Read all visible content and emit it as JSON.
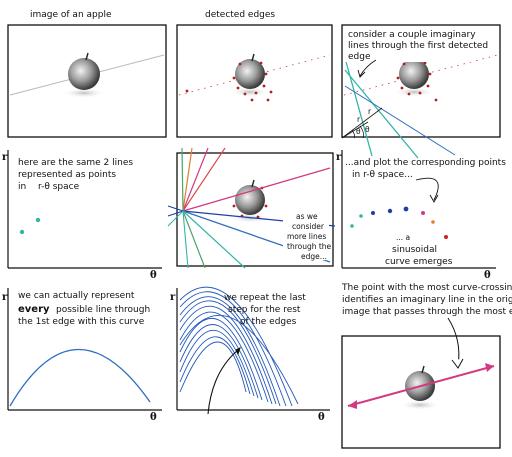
{
  "captions": {
    "apple": "image of an apple",
    "edges": "detected edges",
    "consider_1": "consider a couple imaginary",
    "consider_2": "lines through the first detected",
    "consider_3": "edge",
    "same_1": "here are the same 2 lines",
    "same_2": "represented as points",
    "same_3": "in",
    "same_3b": "r-θ space",
    "plot_1": "...and plot the corresponding points",
    "plot_2": "in r-θ space...",
    "sinus_1": "... a",
    "sinus_2": "sinusoidal",
    "sinus_3": "curve emerges",
    "aswe_1": "as we",
    "aswe_2": "consider",
    "aswe_3": "more lines",
    "aswe_4": "through the",
    "aswe_5": "edge...",
    "every_1": "we can actually represent",
    "every_2a": "every",
    "every_2b": "possible line through",
    "every_3": "the 1st edge with this curve",
    "repeat_1": "we repeat the last",
    "repeat_2": "step for the rest",
    "repeat_3": "of the edges",
    "point_1": "The point with the most curve-crossings",
    "point_2": "identifies an imaginary line in the original",
    "point_3": "image that passes through the most edges"
  },
  "axis": {
    "r": "r",
    "theta": "θ"
  },
  "angle_labels": [
    "r",
    "θ",
    "r",
    "θ"
  ],
  "colors": {
    "blue_curve": "#2f6fc0",
    "dark_blue": "#1f3fa8",
    "teal": "#33b5a6",
    "pink": "#d43a80",
    "red": "#cc2222",
    "orange": "#e08030",
    "green": "#4aa46a"
  },
  "icons": [
    "apple-icon",
    "arrow-icon"
  ]
}
